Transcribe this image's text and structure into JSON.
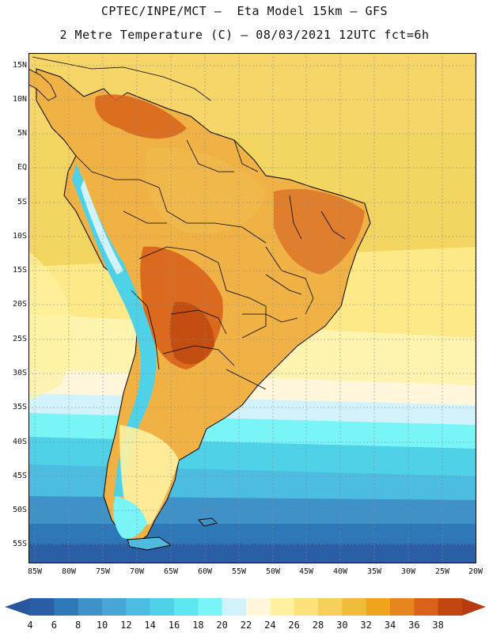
{
  "header": {
    "title_line1": "CPTEC/INPE/MCT –  Eta Model 15km – GFS",
    "title_line2": "2 Metre Temperature (C) – 08/03/2021 12UTC fct=6h"
  },
  "map": {
    "variable": "2 Metre Temperature",
    "units": "C",
    "lat_labels": [
      "15N",
      "10N",
      "5N",
      "EQ",
      "5S",
      "10S",
      "15S",
      "20S",
      "25S",
      "30S",
      "35S",
      "40S",
      "45S",
      "50S",
      "55S"
    ],
    "lon_labels": [
      "85W",
      "80W",
      "75W",
      "70W",
      "65W",
      "60W",
      "55W",
      "50W",
      "45W",
      "40W",
      "35W",
      "30W",
      "25W",
      "20W"
    ]
  },
  "colorbar": {
    "labels": [
      "4",
      "6",
      "8",
      "10",
      "12",
      "14",
      "16",
      "18",
      "20",
      "22",
      "24",
      "26",
      "28",
      "30",
      "32",
      "34",
      "36",
      "38"
    ],
    "colors": [
      "#2a5fa8",
      "#2f78b8",
      "#3f92c8",
      "#48a6d4",
      "#4cbce0",
      "#4fd1e8",
      "#5ee6f0",
      "#79f5f7",
      "#d2f3fb",
      "#fff6dc",
      "#fff1a0",
      "#fde27a",
      "#f6ce5a",
      "#efbc3c",
      "#f0a41e",
      "#e6841e",
      "#d8621a",
      "#c04810"
    ],
    "low_arrow_color": "#2857a0",
    "high_arrow_color": "#b83a10"
  }
}
